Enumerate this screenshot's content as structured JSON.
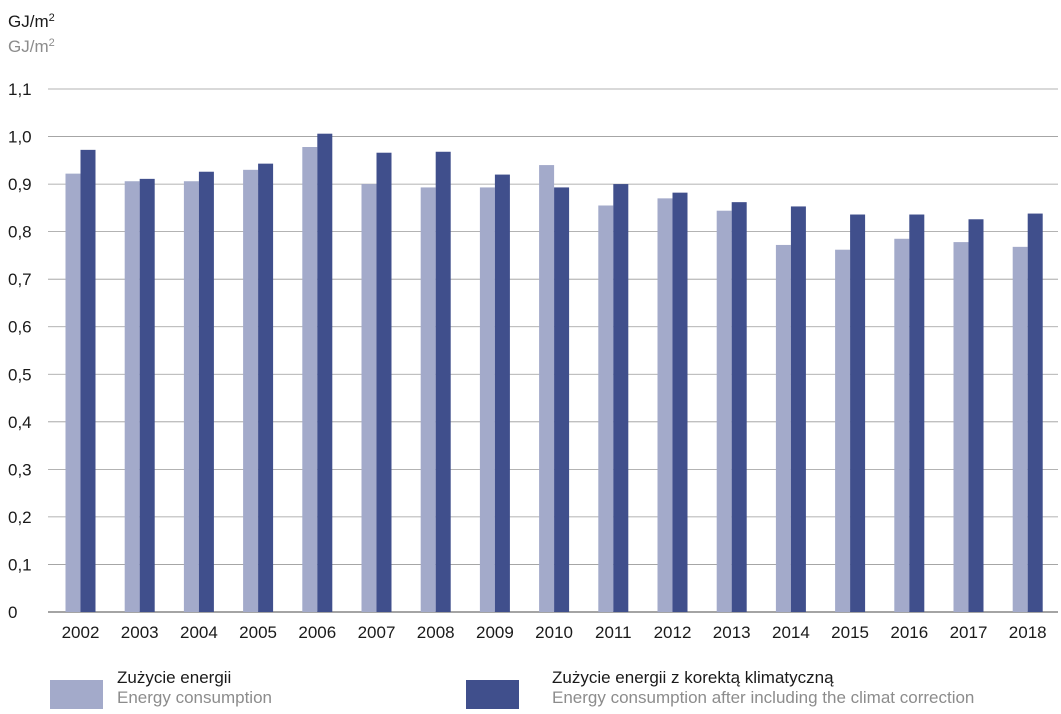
{
  "chart_data": {
    "type": "bar",
    "ylabel": "GJ/m",
    "ylabel_sup": "2",
    "ylabel_en": "GJ/m",
    "ylabel_en_sup": "2",
    "ylim": [
      0,
      1.1
    ],
    "yticks": [
      "0",
      "0,1",
      "0,2",
      "0,3",
      "0,4",
      "0,5",
      "0,6",
      "0,7",
      "0,8",
      "0,9",
      "1,0",
      "1,1"
    ],
    "ytick_values": [
      0,
      0.1,
      0.2,
      0.3,
      0.4,
      0.5,
      0.6,
      0.7,
      0.8,
      0.9,
      1.0,
      1.1
    ],
    "grid": true,
    "legend_position": "bottom",
    "categories": [
      "2002",
      "2003",
      "2004",
      "2005",
      "2006",
      "2007",
      "2008",
      "2009",
      "2010",
      "2011",
      "2012",
      "2013",
      "2014",
      "2015",
      "2016",
      "2017",
      "2018"
    ],
    "series": [
      {
        "name": "Zużycie energii",
        "name_en": "Energy consumption",
        "color": "#a3aaca",
        "values": [
          0.922,
          0.906,
          0.906,
          0.93,
          0.978,
          0.9,
          0.893,
          0.893,
          0.94,
          0.855,
          0.87,
          0.844,
          0.772,
          0.762,
          0.785,
          0.778,
          0.768
        ]
      },
      {
        "name": "Zużycie energii z korektą klimatyczną",
        "name_en": "Energy consumption after including the climat correction",
        "color": "#404f8c",
        "values": [
          0.972,
          0.911,
          0.926,
          0.943,
          1.006,
          0.966,
          0.968,
          0.92,
          0.893,
          0.9,
          0.882,
          0.862,
          0.853,
          0.836,
          0.836,
          0.826,
          0.838
        ]
      }
    ]
  }
}
